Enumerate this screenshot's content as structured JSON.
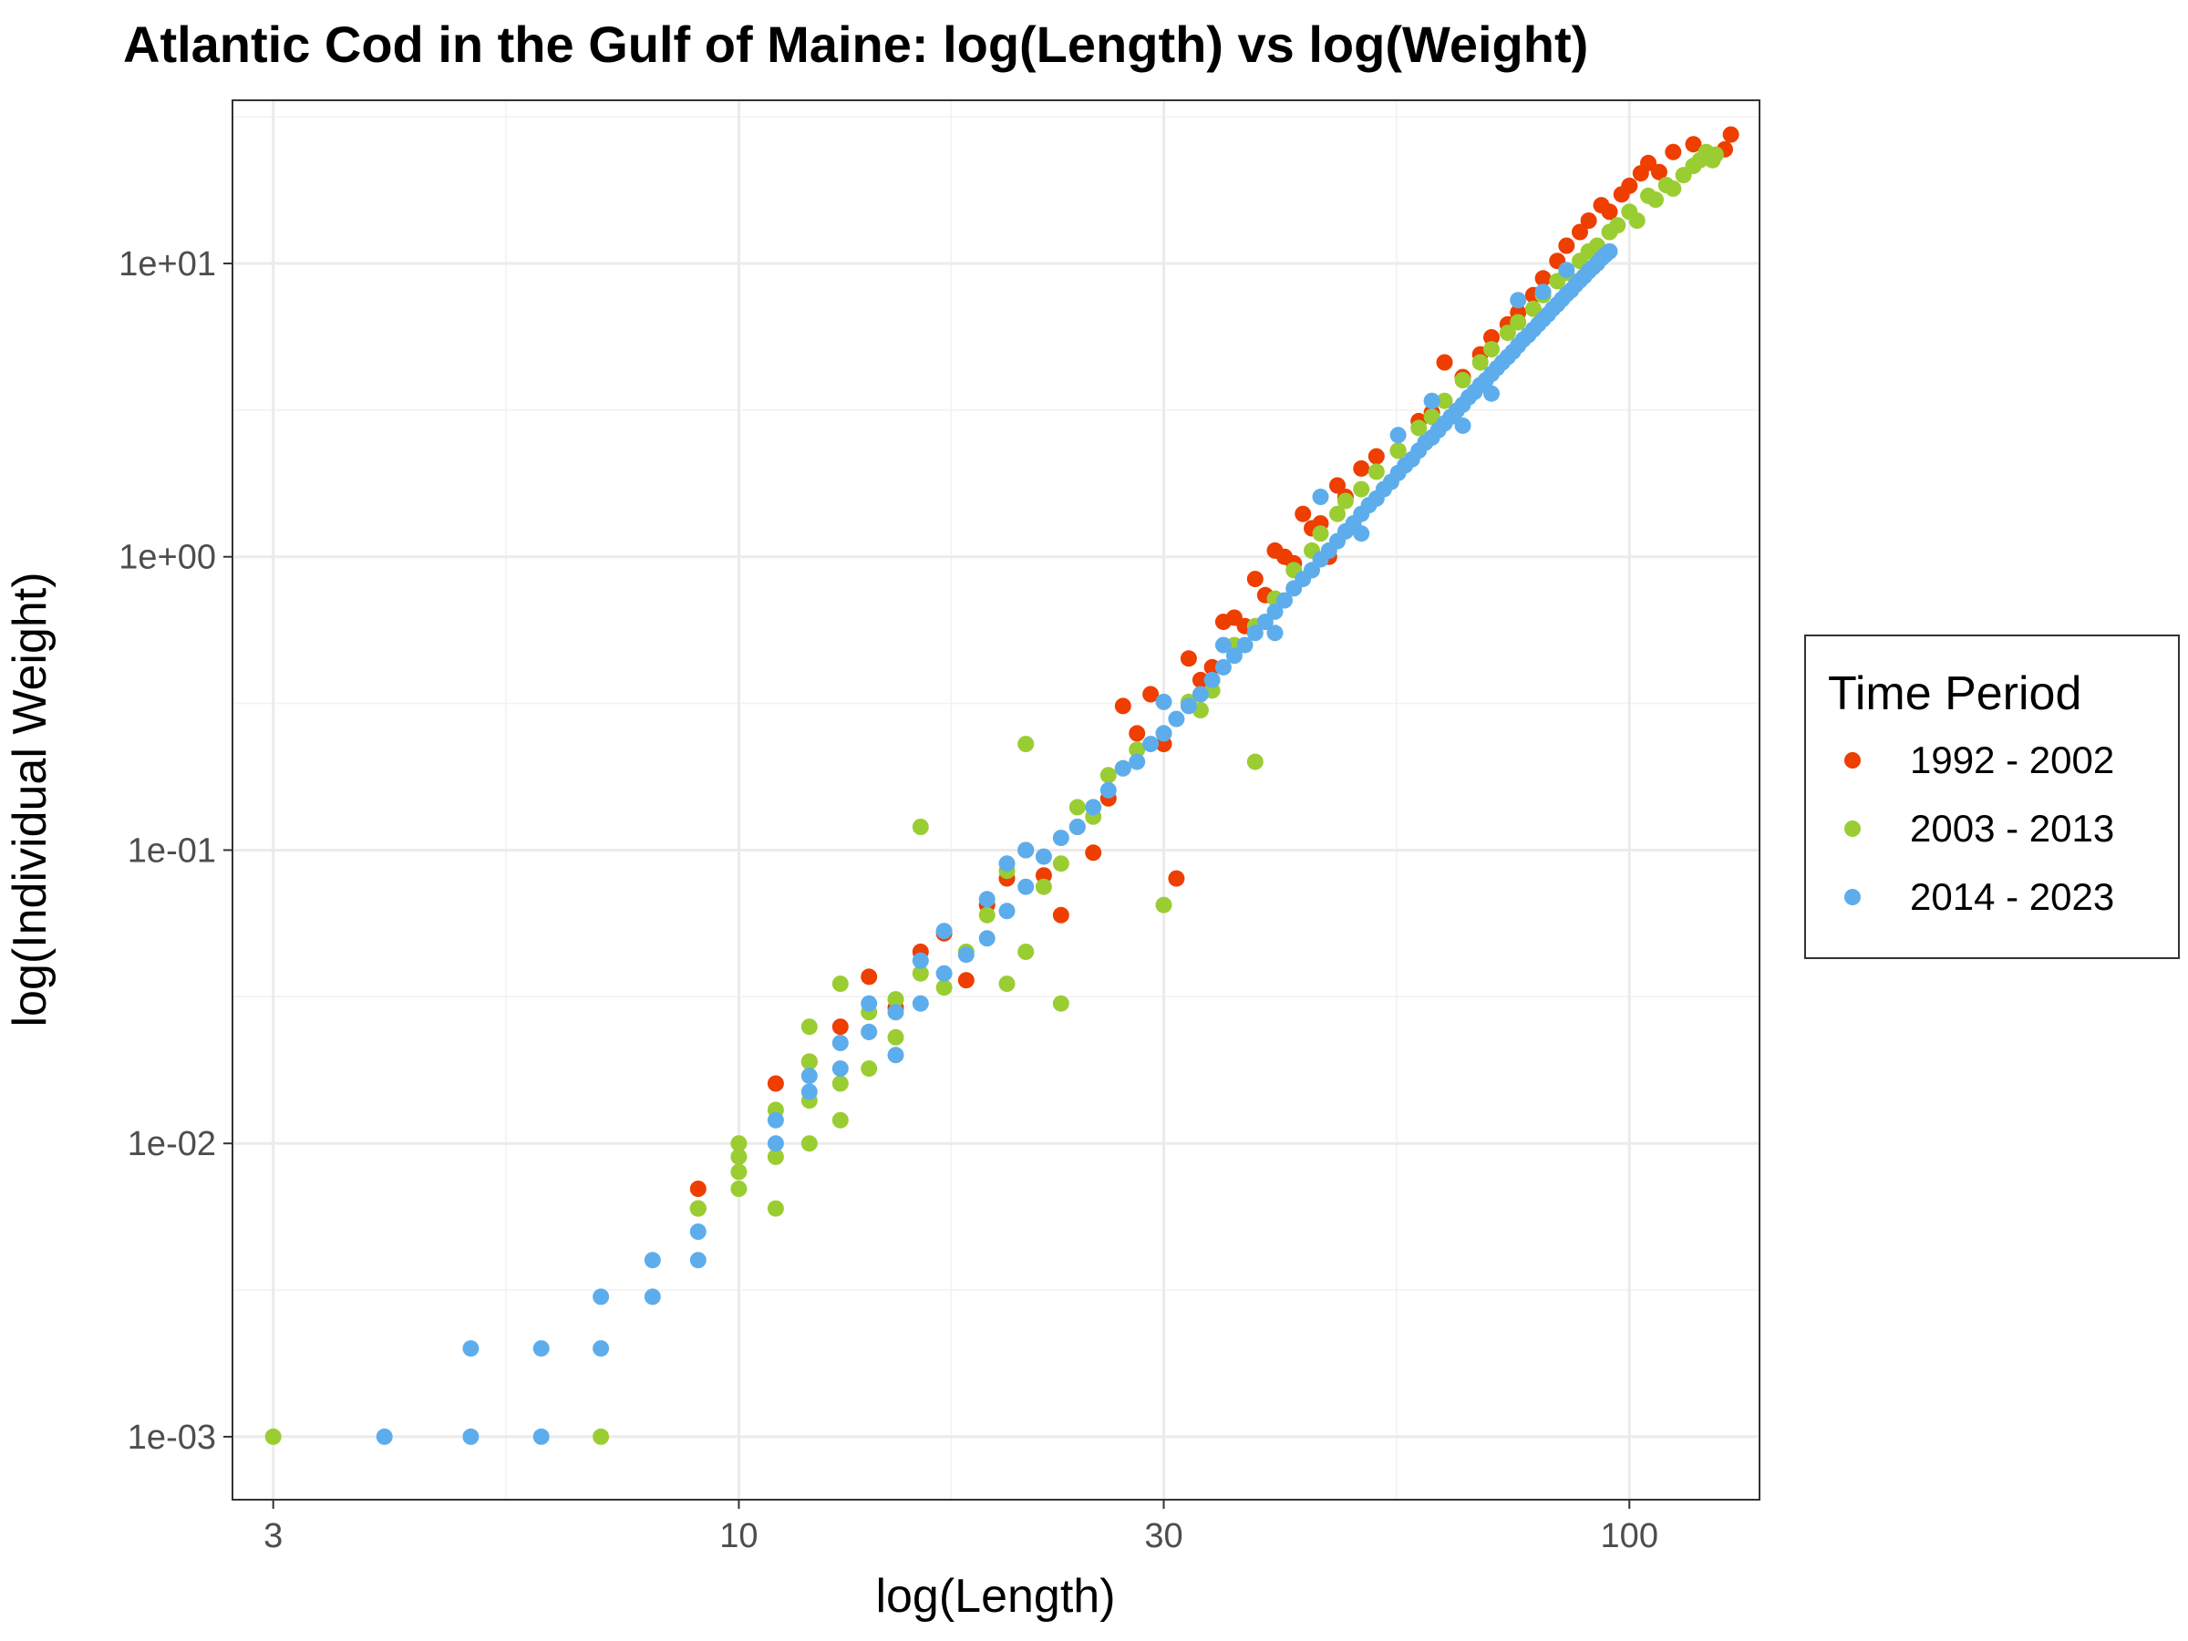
{
  "chart_data": {
    "type": "scatter",
    "title": "Atlantic Cod in the Gulf of Maine: log(Length) vs log(Weight)",
    "xlabel": "log(Length)",
    "ylabel": "log(Individual Weight)",
    "x_scale": "log10",
    "y_scale": "log10",
    "xlim": [
      2.7,
      140
    ],
    "ylim": [
      0.00061,
      36
    ],
    "x_ticks": [
      3,
      10,
      30,
      100
    ],
    "x_tick_labels": [
      "3",
      "10",
      "30",
      "100"
    ],
    "y_ticks": [
      0.001,
      0.01,
      0.1,
      1,
      10
    ],
    "y_tick_labels": [
      "1e-03",
      "1e-02",
      "1e-01",
      "1e+00",
      "1e+01"
    ],
    "grid": true,
    "legend": {
      "title": "Time Period",
      "position": "right"
    },
    "series": [
      {
        "name": "1992 - 2002",
        "color": "#EE3E00",
        "points": [
          [
            9,
            0.007
          ],
          [
            9,
            0.006
          ],
          [
            11,
            0.016
          ],
          [
            12,
            0.019
          ],
          [
            13,
            0.025
          ],
          [
            14,
            0.037
          ],
          [
            15,
            0.029
          ],
          [
            16,
            0.045
          ],
          [
            17,
            0.052
          ],
          [
            18,
            0.036
          ],
          [
            19,
            0.065
          ],
          [
            20,
            0.08
          ],
          [
            21,
            0.1
          ],
          [
            22,
            0.082
          ],
          [
            23,
            0.06
          ],
          [
            24,
            0.12
          ],
          [
            25,
            0.098
          ],
          [
            26,
            0.15
          ],
          [
            27,
            0.31
          ],
          [
            28,
            0.25
          ],
          [
            29,
            0.34
          ],
          [
            30,
            0.23
          ],
          [
            31,
            0.08
          ],
          [
            32,
            0.45
          ],
          [
            33,
            0.38
          ],
          [
            34,
            0.42
          ],
          [
            35,
            0.6
          ],
          [
            36,
            0.62
          ],
          [
            37,
            0.58
          ],
          [
            38,
            0.84
          ],
          [
            39,
            0.74
          ],
          [
            40,
            1.05
          ],
          [
            41,
            1.0
          ],
          [
            42,
            0.95
          ],
          [
            43,
            1.4
          ],
          [
            44,
            1.25
          ],
          [
            45,
            1.3
          ],
          [
            46,
            1.0
          ],
          [
            47,
            1.75
          ],
          [
            48,
            1.6
          ],
          [
            50,
            2.0
          ],
          [
            52,
            2.2
          ],
          [
            55,
            2.3
          ],
          [
            58,
            2.9
          ],
          [
            60,
            3.1
          ],
          [
            62,
            4.6
          ],
          [
            65,
            4.1
          ],
          [
            68,
            4.9
          ],
          [
            70,
            5.6
          ],
          [
            73,
            6.2
          ],
          [
            75,
            6.8
          ],
          [
            78,
            7.8
          ],
          [
            80,
            8.9
          ],
          [
            83,
            10.2
          ],
          [
            85,
            11.5
          ],
          [
            88,
            12.8
          ],
          [
            90,
            14.0
          ],
          [
            93,
            15.8
          ],
          [
            95,
            15.0
          ],
          [
            98,
            17.2
          ],
          [
            100,
            18.4
          ],
          [
            103,
            20.3
          ],
          [
            105,
            22.0
          ],
          [
            108,
            20.5
          ],
          [
            112,
            24.0
          ],
          [
            118,
            25.5
          ],
          [
            130,
            27.5
          ],
          [
            128,
            24.5
          ]
        ]
      },
      {
        "name": "2003 - 2013",
        "color": "#9ACD32",
        "points": [
          [
            3,
            0.001
          ],
          [
            7,
            0.001
          ],
          [
            9,
            0.006
          ],
          [
            10,
            0.01
          ],
          [
            10,
            0.009
          ],
          [
            10,
            0.008
          ],
          [
            10,
            0.007
          ],
          [
            11,
            0.006
          ],
          [
            11,
            0.009
          ],
          [
            11,
            0.013
          ],
          [
            12,
            0.01
          ],
          [
            12,
            0.014
          ],
          [
            12,
            0.019
          ],
          [
            12,
            0.025
          ],
          [
            13,
            0.035
          ],
          [
            13,
            0.016
          ],
          [
            13,
            0.012
          ],
          [
            14,
            0.024
          ],
          [
            14,
            0.028
          ],
          [
            14,
            0.018
          ],
          [
            15,
            0.023
          ],
          [
            15,
            0.031
          ],
          [
            16,
            0.12
          ],
          [
            16,
            0.038
          ],
          [
            17,
            0.034
          ],
          [
            18,
            0.045
          ],
          [
            19,
            0.06
          ],
          [
            20,
            0.035
          ],
          [
            20,
            0.085
          ],
          [
            21,
            0.23
          ],
          [
            21,
            0.045
          ],
          [
            22,
            0.075
          ],
          [
            23,
            0.09
          ],
          [
            23,
            0.03
          ],
          [
            24,
            0.14
          ],
          [
            25,
            0.13
          ],
          [
            26,
            0.18
          ],
          [
            27,
            0.19
          ],
          [
            28,
            0.22
          ],
          [
            30,
            0.065
          ],
          [
            30,
            0.25
          ],
          [
            32,
            0.32
          ],
          [
            33,
            0.3
          ],
          [
            34,
            0.35
          ],
          [
            36,
            0.5
          ],
          [
            38,
            0.58
          ],
          [
            38,
            0.2
          ],
          [
            40,
            0.72
          ],
          [
            42,
            0.9
          ],
          [
            44,
            1.05
          ],
          [
            45,
            1.2
          ],
          [
            47,
            1.4
          ],
          [
            48,
            1.55
          ],
          [
            50,
            1.7
          ],
          [
            52,
            1.95
          ],
          [
            55,
            2.3
          ],
          [
            58,
            2.75
          ],
          [
            60,
            3.0
          ],
          [
            62,
            3.4
          ],
          [
            65,
            4.0
          ],
          [
            68,
            4.6
          ],
          [
            70,
            5.1
          ],
          [
            73,
            5.8
          ],
          [
            75,
            6.3
          ],
          [
            78,
            7.0
          ],
          [
            80,
            7.8
          ],
          [
            83,
            8.7
          ],
          [
            85,
            9.3
          ],
          [
            88,
            10.2
          ],
          [
            90,
            11.0
          ],
          [
            92,
            11.5
          ],
          [
            95,
            12.8
          ],
          [
            97,
            13.5
          ],
          [
            100,
            15.0
          ],
          [
            102,
            14.0
          ],
          [
            105,
            17.0
          ],
          [
            107,
            16.5
          ],
          [
            110,
            18.5
          ],
          [
            112,
            18.0
          ],
          [
            115,
            20.0
          ],
          [
            118,
            21.5
          ],
          [
            120,
            22.5
          ],
          [
            122,
            24.0
          ],
          [
            124,
            22.5
          ],
          [
            125,
            23.5
          ]
        ]
      },
      {
        "name": "2014 - 2023",
        "color": "#5DADEC",
        "points": [
          [
            4,
            0.001
          ],
          [
            5,
            0.001
          ],
          [
            6,
            0.001
          ],
          [
            5,
            0.002
          ],
          [
            6,
            0.002
          ],
          [
            7,
            0.002
          ],
          [
            7,
            0.003
          ],
          [
            8,
            0.003
          ],
          [
            8,
            0.004
          ],
          [
            9,
            0.004
          ],
          [
            9,
            0.005
          ],
          [
            11,
            0.01
          ],
          [
            11,
            0.012
          ],
          [
            12,
            0.015
          ],
          [
            12,
            0.017
          ],
          [
            13,
            0.018
          ],
          [
            13,
            0.022
          ],
          [
            14,
            0.024
          ],
          [
            14,
            0.03
          ],
          [
            15,
            0.02
          ],
          [
            15,
            0.028
          ],
          [
            16,
            0.03
          ],
          [
            16,
            0.042
          ],
          [
            17,
            0.053
          ],
          [
            17,
            0.038
          ],
          [
            18,
            0.044
          ],
          [
            19,
            0.05
          ],
          [
            19,
            0.068
          ],
          [
            20,
            0.062
          ],
          [
            20,
            0.09
          ],
          [
            21,
            0.075
          ],
          [
            21,
            0.1
          ],
          [
            22,
            0.095
          ],
          [
            23,
            0.11
          ],
          [
            24,
            0.12
          ],
          [
            25,
            0.14
          ],
          [
            26,
            0.16
          ],
          [
            27,
            0.19
          ],
          [
            28,
            0.2
          ],
          [
            29,
            0.23
          ],
          [
            30,
            0.25
          ],
          [
            31,
            0.28
          ],
          [
            32,
            0.31
          ],
          [
            33,
            0.34
          ],
          [
            34,
            0.38
          ],
          [
            35,
            0.42
          ],
          [
            36,
            0.46
          ],
          [
            37,
            0.5
          ],
          [
            38,
            0.55
          ],
          [
            39,
            0.6
          ],
          [
            40,
            0.65
          ],
          [
            41,
            0.71
          ],
          [
            42,
            0.78
          ],
          [
            43,
            0.84
          ],
          [
            44,
            0.9
          ],
          [
            45,
            0.98
          ],
          [
            46,
            1.05
          ],
          [
            47,
            1.13
          ],
          [
            48,
            1.22
          ],
          [
            49,
            1.3
          ],
          [
            50,
            1.4
          ],
          [
            51,
            1.5
          ],
          [
            52,
            1.58
          ],
          [
            53,
            1.7
          ],
          [
            54,
            1.8
          ],
          [
            55,
            1.93
          ],
          [
            56,
            2.05
          ],
          [
            57,
            2.15
          ],
          [
            58,
            2.3
          ],
          [
            59,
            2.45
          ],
          [
            60,
            2.55
          ],
          [
            61,
            2.7
          ],
          [
            62,
            2.85
          ],
          [
            63,
            3.0
          ],
          [
            64,
            3.15
          ],
          [
            65,
            3.3
          ],
          [
            66,
            3.5
          ],
          [
            67,
            3.65
          ],
          [
            68,
            3.85
          ],
          [
            69,
            4.0
          ],
          [
            70,
            4.2
          ],
          [
            71,
            4.4
          ],
          [
            72,
            4.6
          ],
          [
            73,
            4.8
          ],
          [
            74,
            5.0
          ],
          [
            75,
            5.25
          ],
          [
            76,
            5.5
          ],
          [
            77,
            5.7
          ],
          [
            78,
            5.95
          ],
          [
            79,
            6.2
          ],
          [
            80,
            6.45
          ],
          [
            81,
            6.7
          ],
          [
            82,
            7.0
          ],
          [
            83,
            7.25
          ],
          [
            84,
            7.55
          ],
          [
            85,
            7.85
          ],
          [
            86,
            8.1
          ],
          [
            87,
            8.45
          ],
          [
            88,
            8.75
          ],
          [
            89,
            9.05
          ],
          [
            90,
            9.4
          ],
          [
            91,
            9.7
          ],
          [
            92,
            10.0
          ],
          [
            93,
            10.4
          ],
          [
            94,
            10.7
          ],
          [
            95,
            11.0
          ],
          [
            45,
            1.6
          ],
          [
            55,
            2.6
          ],
          [
            60,
            3.4
          ],
          [
            75,
            7.5
          ],
          [
            80,
            8.0
          ],
          [
            85,
            9.5
          ],
          [
            50,
            1.2
          ],
          [
            65,
            2.8
          ],
          [
            70,
            3.6
          ],
          [
            40,
            0.55
          ],
          [
            35,
            0.5
          ],
          [
            30,
            0.32
          ]
        ]
      }
    ]
  }
}
